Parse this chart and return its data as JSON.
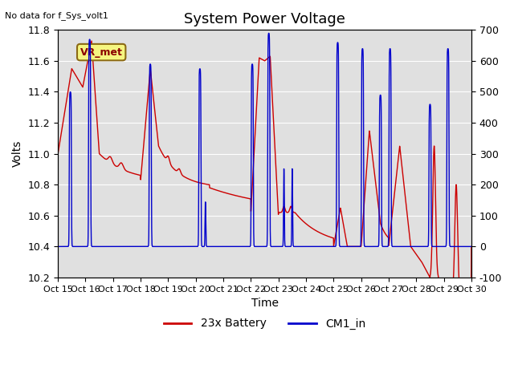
{
  "title": "System Power Voltage",
  "xlabel": "Time",
  "ylabel_left": "Volts",
  "no_data_label": "No data for f_Sys_volt1",
  "annotation_label": "VR_met",
  "ylim_left": [
    10.2,
    11.8
  ],
  "ylim_right": [
    -100,
    700
  ],
  "x_tick_labels": [
    "Oct 15",
    "Oct 16",
    "Oct 17",
    "Oct 18",
    "Oct 19",
    "Oct 20",
    "Oct 21",
    "Oct 22",
    "Oct 23",
    "Oct 24",
    "Oct 25",
    "Oct 26",
    "Oct 27",
    "Oct 28",
    "Oct 29",
    "Oct 30"
  ],
  "bg_color": "#e0e0e0",
  "red_color": "#cc0000",
  "blue_color": "#0000cc",
  "legend_red": "23x Battery",
  "legend_blue": "CM1_in",
  "left_yticks": [
    10.2,
    10.4,
    10.6,
    10.8,
    11.0,
    11.2,
    11.4,
    11.6,
    11.8
  ],
  "right_yticks": [
    -100,
    0,
    100,
    200,
    300,
    400,
    500,
    600,
    700
  ]
}
